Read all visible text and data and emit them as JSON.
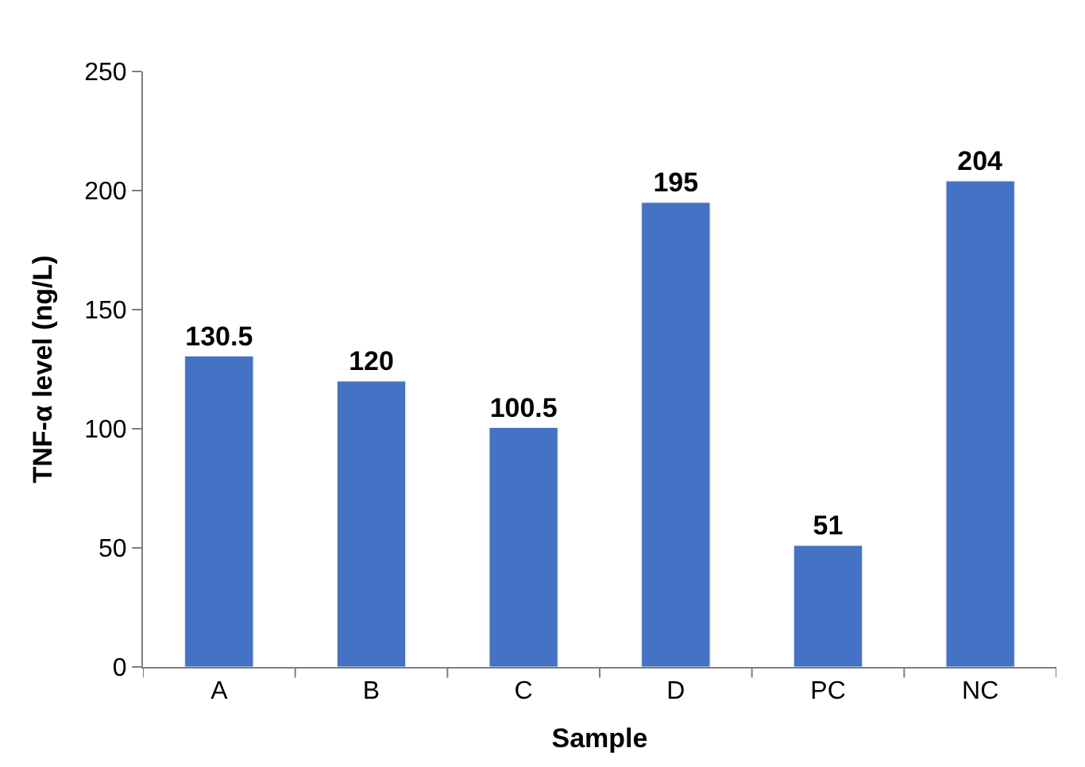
{
  "chart_data": {
    "type": "bar",
    "xlabel": "Sample",
    "ylabel": "TNF-α level (ng/L)",
    "categories": [
      "A",
      "B",
      "C",
      "D",
      "PC",
      "NC"
    ],
    "values": [
      130.5,
      120,
      100.5,
      195,
      51,
      204
    ],
    "color": "#4472c4",
    "ylim": [
      0,
      250
    ],
    "yticks": [
      0,
      50,
      100,
      150,
      200,
      250
    ],
    "data_labels": true
  }
}
